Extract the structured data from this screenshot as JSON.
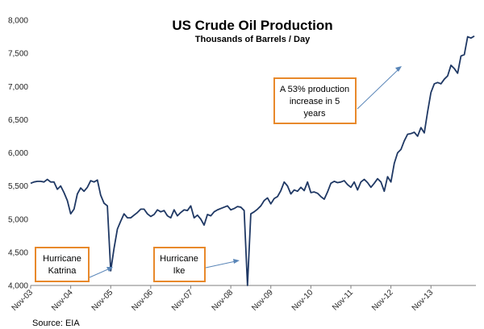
{
  "chart_data": {
    "type": "line",
    "title": "US Crude Oil Production",
    "subtitle": "Thousands of Barrels / Day",
    "xlabel": "",
    "ylabel": "",
    "ylim": [
      4000,
      8000
    ],
    "yticks": [
      "4,000",
      "4,500",
      "5,000",
      "5,500",
      "6,000",
      "6,500",
      "7,000",
      "7,500",
      "8,000"
    ],
    "ytick_values": [
      4000,
      4500,
      5000,
      5500,
      6000,
      6500,
      7000,
      7500,
      8000
    ],
    "xticks": [
      "Nov-03",
      "Nov-04",
      "Nov-05",
      "Nov-06",
      "Nov-07",
      "Nov-08",
      "Nov-09",
      "Nov-10",
      "Nov-11",
      "Nov-12",
      "Nov-13"
    ],
    "grid": false,
    "line_color": "#1f3864",
    "annotation_color": "#e8892b",
    "arrow_color": "#5a86b8",
    "x_start_label": "Nov-03",
    "series": [
      {
        "values": [
          5540,
          5560,
          5570,
          5570,
          5560,
          5600,
          5560,
          5560,
          5450,
          5500,
          5400,
          5280,
          5080,
          5150,
          5380,
          5470,
          5420,
          5480,
          5580,
          5560,
          5590,
          5360,
          5240,
          5200,
          4220,
          4560,
          4850,
          4970,
          5080,
          5020,
          5020,
          5060,
          5100,
          5150,
          5150,
          5080,
          5040,
          5070,
          5140,
          5110,
          5130,
          5050,
          5020,
          5140,
          5050,
          5100,
          5140,
          5130,
          5200,
          5020,
          5060,
          5000,
          4910,
          5070,
          5050,
          5110,
          5140,
          5160,
          5180,
          5200,
          5140,
          5160,
          5190,
          5180,
          5130,
          4000,
          5080,
          5110,
          5150,
          5200,
          5280,
          5320,
          5230,
          5310,
          5340,
          5430,
          5560,
          5500,
          5380,
          5440,
          5420,
          5480,
          5430,
          5560,
          5400,
          5410,
          5390,
          5340,
          5300,
          5410,
          5540,
          5570,
          5550,
          5560,
          5580,
          5520,
          5480,
          5560,
          5440,
          5560,
          5600,
          5550,
          5480,
          5540,
          5610,
          5560,
          5420,
          5640,
          5560,
          5840,
          6000,
          6050,
          6180,
          6280,
          6290,
          6310,
          6250,
          6380,
          6300,
          6620,
          6910,
          7040,
          7060,
          7040,
          7110,
          7160,
          7320,
          7270,
          7200,
          7460,
          7480,
          7750,
          7730,
          7760
        ]
      }
    ],
    "annotations": [
      {
        "name": "katrina",
        "lines": [
          "Hurricane",
          "Katrina"
        ]
      },
      {
        "name": "ike",
        "lines": [
          "Hurricane",
          "Ike"
        ]
      },
      {
        "name": "increase",
        "lines": [
          "A 53% production",
          "increase in 5",
          "years"
        ]
      }
    ]
  },
  "source": "Source: EIA"
}
